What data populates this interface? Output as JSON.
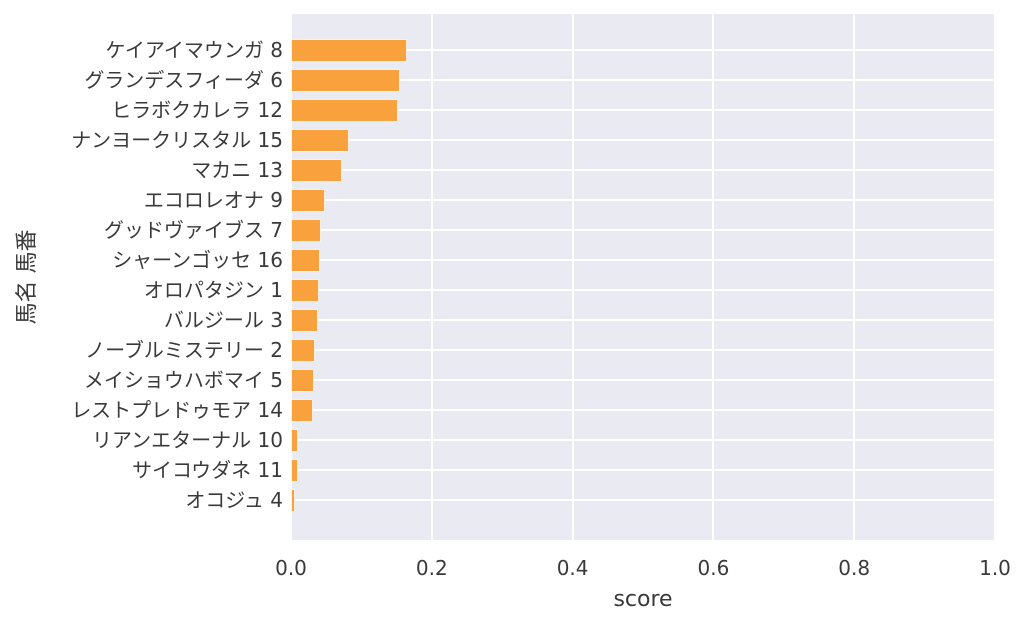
{
  "chart_data": {
    "type": "bar",
    "orientation": "horizontal",
    "title": "",
    "xlabel": "score",
    "ylabel": "馬名 馬番",
    "xlim": [
      0.0,
      1.0
    ],
    "xticks": [
      0.0,
      0.2,
      0.4,
      0.6,
      0.8,
      1.0
    ],
    "xtick_labels": [
      "0.0",
      "0.2",
      "0.4",
      "0.6",
      "0.8",
      "1.0"
    ],
    "grid": true,
    "legend": false,
    "categories": [
      "ケイアイマウンガ 8",
      "グランデスフィーダ 6",
      "ヒラボクカレラ 12",
      "ナンヨークリスタル 15",
      "マカニ 13",
      "エコロレオナ 9",
      "グッドヴァイブス 7",
      "シャーンゴッセ 16",
      "オロパタジン 1",
      "バルジール 3",
      "ノーブルミステリー 2",
      "メイショウハボマイ 5",
      "レストプレドゥモア 14",
      "リアンエターナル 10",
      "サイコウダネ 11",
      "オコジュ 4"
    ],
    "values": [
      0.165,
      0.155,
      0.152,
      0.082,
      0.072,
      0.049,
      0.043,
      0.041,
      0.04,
      0.038,
      0.034,
      0.033,
      0.031,
      0.01,
      0.01,
      0.006
    ],
    "colors": {
      "bar": "#f9a13d",
      "plot_background": "#eaeaf2",
      "gridline": "#ffffff",
      "text": "#3a3a3a",
      "figure_background": "#ffffff"
    }
  }
}
